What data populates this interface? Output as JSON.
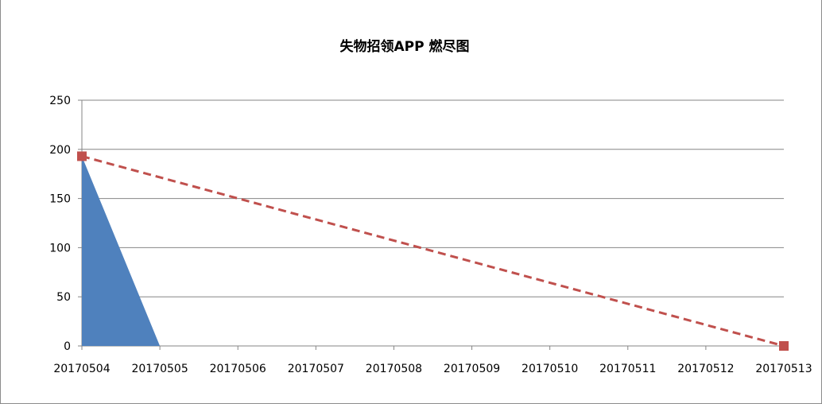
{
  "chart_data": {
    "type": "area",
    "title": "失物招领APP 燃尽图",
    "categories": [
      "20170504",
      "20170505",
      "20170506",
      "20170507",
      "20170508",
      "20170509",
      "20170510",
      "20170511",
      "20170512",
      "20170513"
    ],
    "ylim": [
      0,
      250
    ],
    "y_ticks": [
      "0",
      "50",
      "100",
      "150",
      "200",
      "250"
    ],
    "grid": "horizontal",
    "legend": "none",
    "series": [
      {
        "kind": "area",
        "color": "#4f81bd",
        "values": [
          193,
          0,
          0,
          0,
          0,
          0,
          0,
          0,
          0,
          0
        ]
      },
      {
        "kind": "line",
        "style": "dashed",
        "marker": "square",
        "color": "#c0504d",
        "points": [
          {
            "category": "20170504",
            "value": 193
          },
          {
            "category": "20170513",
            "value": 0
          }
        ]
      }
    ]
  }
}
